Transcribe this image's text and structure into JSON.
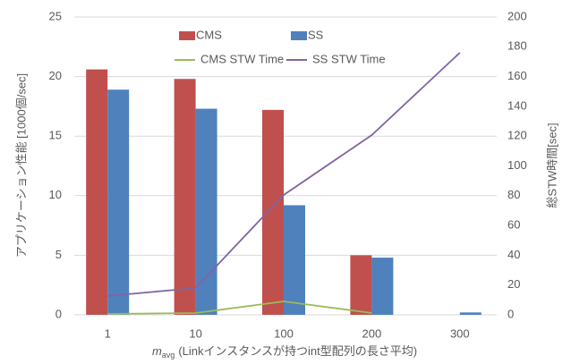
{
  "chart_data": {
    "type": "bar",
    "categories": [
      "1",
      "10",
      "100",
      "200",
      "300"
    ],
    "series": [
      {
        "name": "CMS",
        "color": "#c0504d",
        "values": [
          20.6,
          19.8,
          17.2,
          5.0,
          null
        ]
      },
      {
        "name": "SS",
        "color": "#4f81bd",
        "values": [
          18.9,
          17.3,
          9.2,
          4.8,
          0.2
        ]
      },
      {
        "name": "CMS STW Time",
        "color": "#9bbb59",
        "axis": "y2",
        "type": "line",
        "values": [
          0.6,
          1.2,
          9,
          1.2,
          null
        ]
      },
      {
        "name": "SS STW Time",
        "color": "#8064a2",
        "axis": "y2",
        "type": "line",
        "values": [
          12.6,
          18,
          80.5,
          120.7,
          176
        ]
      }
    ],
    "ylim": [
      0,
      25
    ],
    "yticks": [
      0,
      5,
      10,
      15,
      20,
      25
    ],
    "y2lim": [
      0,
      200
    ],
    "y2ticks": [
      0,
      20,
      40,
      60,
      80,
      100,
      120,
      140,
      160,
      180,
      200
    ],
    "y_label": "アプリケーション性能 [1000個/sec]",
    "y2_label": "総STW時間[sec]",
    "x_label_var": "m",
    "x_label_sub": "avg",
    "x_label": "(Linkインスタンスが持つint型配列の長さ平均)",
    "grid": true,
    "legend": "top"
  }
}
